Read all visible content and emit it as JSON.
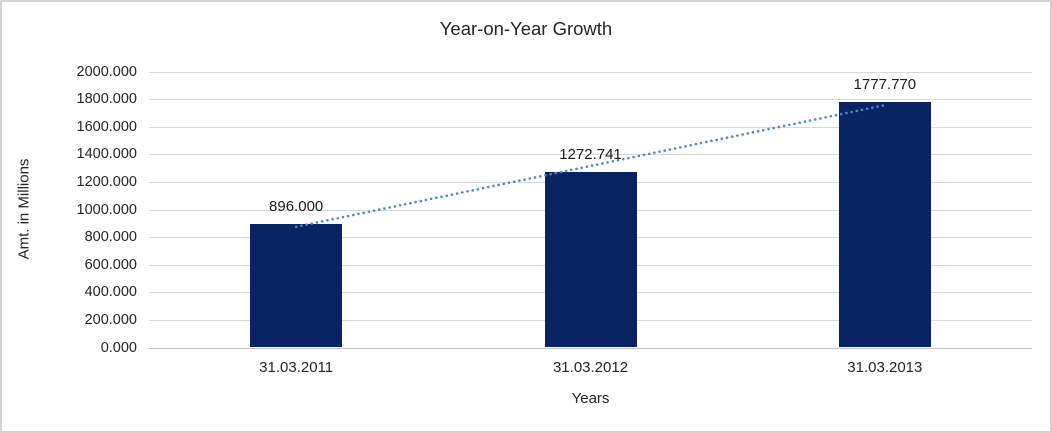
{
  "chart_data": {
    "type": "bar",
    "title": "Year-on-Year Growth",
    "xlabel": "Years",
    "ylabel": "Amt. in Millions",
    "categories": [
      "31.03.2011",
      "31.03.2012",
      "31.03.2013"
    ],
    "values": [
      896.0,
      1272.741,
      1777.77
    ],
    "data_labels": [
      "896.000",
      "1272.741",
      "1777.770"
    ],
    "ylim": [
      0,
      2000
    ],
    "ytick_step": 200,
    "ytick_labels": [
      "0.000",
      "200.000",
      "400.000",
      "600.000",
      "800.000",
      "1000.000",
      "1200.000",
      "1400.000",
      "1600.000",
      "1800.000",
      "2000.000"
    ],
    "grid": true,
    "legend": "none",
    "trendline": {
      "kind": "linear",
      "style": "dotted",
      "color": "#4f87c9"
    },
    "colors": {
      "bar": "#0a2362",
      "gridline": "#d9d9d9",
      "axis_line": "#c6c6c6",
      "text": "#262626",
      "frame_border": "#d2d2d2",
      "background": "#ffffff"
    }
  }
}
